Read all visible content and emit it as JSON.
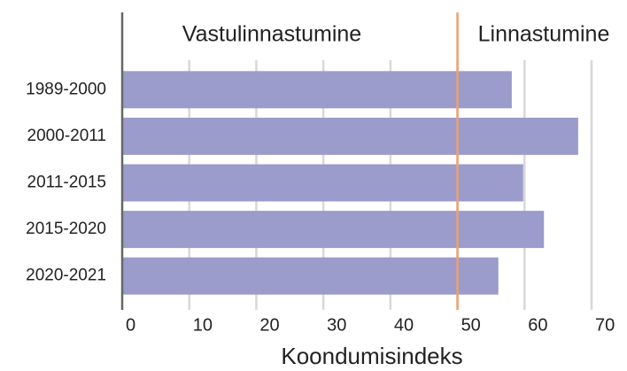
{
  "chart_data": {
    "type": "bar",
    "orientation": "horizontal",
    "categories": [
      "1989-2000",
      "2000-2011",
      "2011-2015",
      "2015-2020",
      "2020-2021"
    ],
    "values": [
      58.1,
      68.0,
      59.8,
      62.9,
      56.1
    ],
    "color": "#9b9bcc",
    "xlim": [
      0,
      70
    ],
    "xticks": [
      0,
      10,
      20,
      30,
      40,
      50,
      60,
      70
    ],
    "grid": true,
    "x_label": "Koondumisindeks",
    "reference_line": {
      "value": 50,
      "color": "#f0a070"
    },
    "annotations": [
      "Vastulinnastumine",
      "Linnastumine"
    ]
  }
}
